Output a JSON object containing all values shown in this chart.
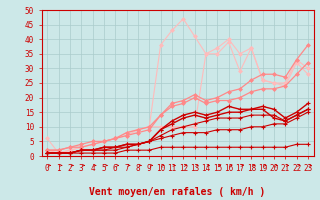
{
  "bg_color": "#cce8e8",
  "grid_color": "#aacccc",
  "xlabel": "Vent moyen/en rafales ( km/h )",
  "xlim": [
    -0.5,
    23.5
  ],
  "ylim": [
    0,
    50
  ],
  "yticks": [
    0,
    5,
    10,
    15,
    20,
    25,
    30,
    35,
    40,
    45,
    50
  ],
  "xticks": [
    0,
    1,
    2,
    3,
    4,
    5,
    6,
    7,
    8,
    9,
    10,
    11,
    12,
    13,
    14,
    15,
    16,
    17,
    18,
    19,
    20,
    21,
    22,
    23
  ],
  "lines": [
    {
      "x": [
        0,
        1,
        2,
        3,
        4,
        5,
        6,
        7,
        8,
        9,
        10,
        11,
        12,
        13,
        14,
        15,
        16,
        17,
        18,
        19,
        20,
        21,
        22,
        23
      ],
      "y": [
        1,
        1,
        1,
        1,
        1,
        1,
        1,
        2,
        2,
        2,
        3,
        3,
        3,
        3,
        3,
        3,
        3,
        3,
        3,
        3,
        3,
        3,
        4,
        4
      ],
      "color": "#cc0000",
      "lw": 0.8,
      "marker": "+",
      "ms": 3,
      "mew": 0.8,
      "zorder": 5
    },
    {
      "x": [
        0,
        1,
        2,
        3,
        4,
        5,
        6,
        7,
        8,
        9,
        10,
        11,
        12,
        13,
        14,
        15,
        16,
        17,
        18,
        19,
        20,
        21,
        22,
        23
      ],
      "y": [
        1,
        1,
        1,
        2,
        2,
        2,
        2,
        3,
        4,
        5,
        6,
        7,
        8,
        8,
        8,
        9,
        9,
        9,
        10,
        10,
        11,
        11,
        13,
        15
      ],
      "color": "#cc0000",
      "lw": 0.8,
      "marker": "+",
      "ms": 3,
      "mew": 0.8,
      "zorder": 5
    },
    {
      "x": [
        0,
        1,
        2,
        3,
        4,
        5,
        6,
        7,
        8,
        9,
        10,
        11,
        12,
        13,
        14,
        15,
        16,
        17,
        18,
        19,
        20,
        21,
        22,
        23
      ],
      "y": [
        1,
        1,
        1,
        2,
        2,
        2,
        3,
        3,
        4,
        5,
        7,
        9,
        10,
        11,
        12,
        13,
        13,
        13,
        14,
        14,
        14,
        12,
        14,
        16
      ],
      "color": "#cc0000",
      "lw": 0.8,
      "marker": "+",
      "ms": 3,
      "mew": 0.8,
      "zorder": 5
    },
    {
      "x": [
        0,
        1,
        2,
        3,
        4,
        5,
        6,
        7,
        8,
        9,
        10,
        11,
        12,
        13,
        14,
        15,
        16,
        17,
        18,
        19,
        20,
        21,
        22,
        23
      ],
      "y": [
        1,
        1,
        1,
        2,
        2,
        3,
        3,
        4,
        4,
        5,
        9,
        11,
        13,
        14,
        13,
        14,
        15,
        15,
        16,
        16,
        13,
        12,
        14,
        16
      ],
      "color": "#cc0000",
      "lw": 1.0,
      "marker": "+",
      "ms": 3,
      "mew": 0.8,
      "zorder": 5
    },
    {
      "x": [
        0,
        1,
        2,
        3,
        4,
        5,
        6,
        7,
        8,
        9,
        10,
        11,
        12,
        13,
        14,
        15,
        16,
        17,
        18,
        19,
        20,
        21,
        22,
        23
      ],
      "y": [
        1,
        1,
        1,
        2,
        2,
        3,
        3,
        4,
        4,
        5,
        9,
        12,
        14,
        15,
        14,
        15,
        17,
        16,
        16,
        17,
        16,
        13,
        15,
        18
      ],
      "color": "#cc0000",
      "lw": 1.0,
      "marker": "+",
      "ms": 3,
      "mew": 0.8,
      "zorder": 5
    },
    {
      "x": [
        0,
        1,
        2,
        3,
        4,
        5,
        6,
        7,
        8,
        9,
        10,
        11,
        12,
        13,
        14,
        15,
        16,
        17,
        18,
        19,
        20,
        21,
        22,
        23
      ],
      "y": [
        2,
        2,
        3,
        3,
        4,
        5,
        6,
        7,
        8,
        9,
        14,
        17,
        18,
        20,
        18,
        19,
        19,
        20,
        22,
        23,
        23,
        24,
        28,
        32
      ],
      "color": "#ff8888",
      "lw": 0.9,
      "marker": "D",
      "ms": 2,
      "mew": 0.5,
      "zorder": 4
    },
    {
      "x": [
        0,
        1,
        2,
        3,
        4,
        5,
        6,
        7,
        8,
        9,
        10,
        11,
        12,
        13,
        14,
        15,
        16,
        17,
        18,
        19,
        20,
        21,
        22,
        23
      ],
      "y": [
        2,
        2,
        3,
        4,
        5,
        5,
        6,
        8,
        9,
        10,
        14,
        18,
        19,
        21,
        19,
        20,
        22,
        23,
        26,
        28,
        28,
        27,
        33,
        38
      ],
      "color": "#ff8888",
      "lw": 0.9,
      "marker": "D",
      "ms": 2,
      "mew": 0.5,
      "zorder": 4
    },
    {
      "x": [
        0,
        1,
        2,
        3,
        4,
        5,
        6,
        7,
        8,
        9,
        10,
        11,
        12,
        13,
        14,
        15,
        16,
        17,
        18,
        19,
        20,
        21,
        22,
        23
      ],
      "y": [
        6,
        1,
        2,
        3,
        4,
        5,
        6,
        8,
        9,
        10,
        10,
        10,
        10,
        10,
        35,
        37,
        40,
        35,
        37,
        26,
        25,
        25,
        33,
        30
      ],
      "color": "#ffbbbb",
      "lw": 0.8,
      "marker": "D",
      "ms": 2,
      "mew": 0.5,
      "zorder": 3
    },
    {
      "x": [
        0,
        1,
        2,
        3,
        4,
        5,
        6,
        7,
        8,
        9,
        10,
        11,
        12,
        13,
        14,
        15,
        16,
        17,
        18,
        19,
        20,
        21,
        22,
        23
      ],
      "y": [
        2,
        1,
        2,
        3,
        4,
        5,
        6,
        7,
        9,
        10,
        38,
        43,
        47,
        41,
        35,
        35,
        39,
        29,
        37,
        26,
        25,
        24,
        32,
        28
      ],
      "color": "#ffbbbb",
      "lw": 0.8,
      "marker": "D",
      "ms": 2,
      "mew": 0.5,
      "zorder": 3
    }
  ],
  "xlabel_color": "#cc0000",
  "xlabel_fontsize": 7,
  "tick_fontsize": 5.5,
  "tick_color": "#cc0000",
  "spine_color": "#cc0000"
}
